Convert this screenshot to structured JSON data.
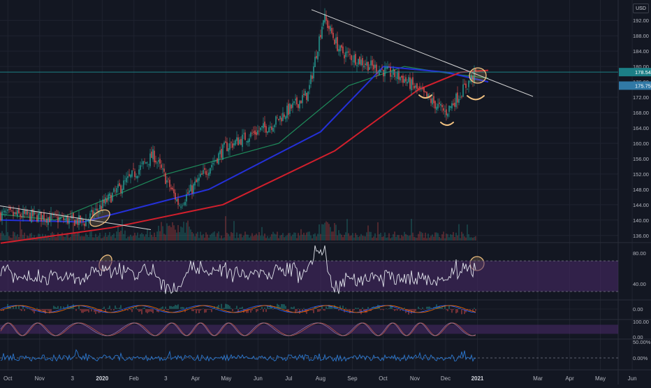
{
  "currency_label": "USD",
  "colors": {
    "background": "#131722",
    "grid": "#1f2330",
    "up_candle": "#26a69a",
    "down_candle": "#ef5350",
    "ma_fast": "#1e8a5a",
    "ma_mid": "#2430d8",
    "ma_slow": "#d21f2c",
    "trendline": "#d9d9d9",
    "price_line": "#1c7f86",
    "rsi": "#e0e3eb",
    "rsi_band": "#4a2a6a",
    "stoch_k": "#b0534a",
    "cmf": "#2a77d0",
    "annotation": "#f0c080"
  },
  "icons": [
    "currency-badge",
    "ellipse-annotation",
    "smile-arc-annotation"
  ],
  "chart_data": [
    {
      "type": "candlestick",
      "title": "",
      "x_ticks": [
        "Oct",
        "Nov",
        "3",
        "2020",
        "Feb",
        "3",
        "Apr",
        "May",
        "Jun",
        "Jul",
        "Aug",
        "Sep",
        "Oct",
        "Nov",
        "Dec",
        "2021",
        "Mar",
        "Apr",
        "May",
        "Jun"
      ],
      "y_ticks": [
        "136.00",
        "140.00",
        "144.00",
        "148.00",
        "152.00",
        "156.00",
        "160.00",
        "164.00",
        "168.00",
        "172.00",
        "176.00",
        "180.00",
        "184.00",
        "188.00",
        "192.00"
      ],
      "ylim": [
        134.5,
        195.5
      ],
      "price_labels": [
        "178.54",
        "175.75"
      ],
      "approx_close_anchors": [
        {
          "date": "2019-09-24",
          "close": 141.5
        },
        {
          "date": "2019-10-31",
          "close": 141.0
        },
        {
          "date": "2019-12-15",
          "close": 139.5
        },
        {
          "date": "2020-01-15",
          "close": 147.5
        },
        {
          "date": "2020-02-20",
          "close": 157.0
        },
        {
          "date": "2020-03-16",
          "close": 144.0
        },
        {
          "date": "2020-04-30",
          "close": 159.0
        },
        {
          "date": "2020-06-15",
          "close": 165.0
        },
        {
          "date": "2020-07-20",
          "close": 173.0
        },
        {
          "date": "2020-08-04",
          "close": 193.0
        },
        {
          "date": "2020-08-20",
          "close": 184.0
        },
        {
          "date": "2020-09-20",
          "close": 180.0
        },
        {
          "date": "2020-10-20",
          "close": 177.0
        },
        {
          "date": "2020-12-01",
          "close": 168.0
        },
        {
          "date": "2020-12-31",
          "close": 178.5
        }
      ],
      "series": [
        {
          "kind": "moving-average",
          "approx_values": [
            [
              1,
              141.5
            ],
            [
              40,
              140.0
            ],
            [
              120,
              152.0
            ],
            [
              200,
              160.0
            ],
            [
              250,
              175.0
            ],
            [
              290,
              180.0
            ],
            [
              325,
              178.0
            ],
            [
              350,
              177.0
            ]
          ]
        },
        {
          "kind": "moving-average",
          "approx_values": [
            [
              1,
              140.0
            ],
            [
              60,
              139.5
            ],
            [
              150,
              148.0
            ],
            [
              230,
              163.0
            ],
            [
              275,
              180.0
            ],
            [
              320,
              178.5
            ],
            [
              350,
              176.0
            ]
          ]
        },
        {
          "kind": "moving-average",
          "approx_values": [
            [
              1,
              134.0
            ],
            [
              80,
              138.0
            ],
            [
              160,
              144.0
            ],
            [
              240,
              158.0
            ],
            [
              300,
              174.0
            ],
            [
              330,
              178.5
            ],
            [
              350,
              179.0
            ]
          ]
        }
      ]
    },
    {
      "type": "line",
      "title": "",
      "y_ticks": [
        "40.00",
        "80.00"
      ],
      "bands": [
        30,
        70
      ],
      "ylim": [
        20,
        92
      ]
    },
    {
      "type": "line",
      "title": "",
      "y_ticks": [
        "0.00"
      ]
    },
    {
      "type": "line",
      "title": "",
      "y_ticks": [
        "100.00",
        "0.00"
      ],
      "ylim": [
        -10,
        110
      ]
    },
    {
      "type": "line",
      "title": "",
      "y_ticks": [
        "50.00%",
        "0.00%"
      ]
    }
  ]
}
